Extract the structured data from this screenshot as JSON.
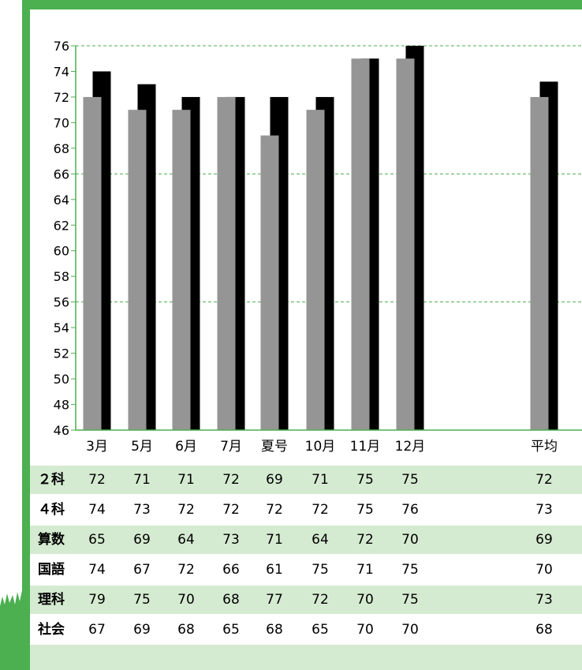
{
  "chart_data": {
    "type": "bar",
    "categories": [
      "3月",
      "5月",
      "6月",
      "7月",
      "夏号",
      "10月",
      "11月",
      "12月",
      "平均"
    ],
    "series": [
      {
        "name": "２科",
        "values": [
          72,
          71,
          71,
          72,
          69,
          71,
          75,
          75,
          72
        ]
      },
      {
        "name": "４科",
        "values": [
          74,
          73,
          72,
          72,
          72,
          72,
          75,
          76,
          73.2
        ]
      }
    ],
    "ylim": [
      46,
      76
    ],
    "yticks": [
      46,
      48,
      50,
      52,
      54,
      56,
      58,
      60,
      62,
      64,
      66,
      68,
      70,
      72,
      74,
      76
    ],
    "gridlines": [
      56,
      66,
      76
    ],
    "grid": true,
    "colors": {
      "series1": "#959595",
      "series2": "#000000",
      "axis": "#4caf50",
      "grid": "#4caf50"
    }
  },
  "table": {
    "rows": [
      {
        "label": "２科",
        "values": [
          "72",
          "71",
          "71",
          "72",
          "69",
          "71",
          "75",
          "75",
          "72"
        ]
      },
      {
        "label": "４科",
        "values": [
          "74",
          "73",
          "72",
          "72",
          "72",
          "72",
          "75",
          "76",
          "73"
        ]
      },
      {
        "label": "算数",
        "values": [
          "65",
          "69",
          "64",
          "73",
          "71",
          "64",
          "72",
          "70",
          "69"
        ]
      },
      {
        "label": "国語",
        "values": [
          "74",
          "67",
          "72",
          "66",
          "61",
          "75",
          "71",
          "75",
          "70"
        ]
      },
      {
        "label": "理科",
        "values": [
          "79",
          "75",
          "70",
          "68",
          "77",
          "72",
          "70",
          "75",
          "73"
        ]
      },
      {
        "label": "社会",
        "values": [
          "67",
          "69",
          "68",
          "65",
          "68",
          "65",
          "70",
          "70",
          "68"
        ]
      }
    ]
  },
  "colors": {
    "frame": "#4caf50",
    "row_shade": "#d5ebd1"
  }
}
